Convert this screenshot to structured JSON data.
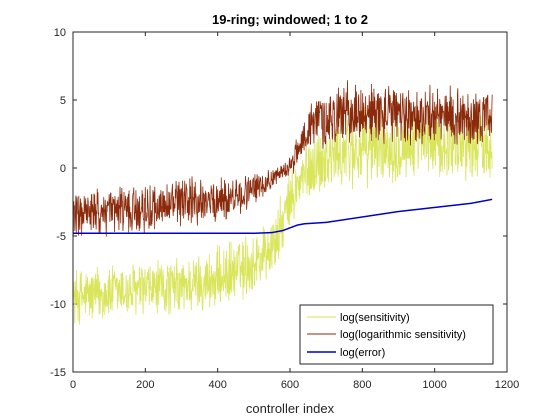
{
  "chart_data": {
    "type": "line",
    "title": "19-ring; windowed; 1 to 2",
    "xlabel": "controller index",
    "ylabel": "",
    "xlim": [
      0,
      1200
    ],
    "ylim": [
      -15,
      10
    ],
    "x_ticks": [
      0,
      200,
      400,
      600,
      800,
      1000,
      1200
    ],
    "y_ticks": [
      -15,
      -10,
      -5,
      0,
      5,
      10
    ],
    "legend_position": "bottom-right",
    "grid": false,
    "n_points": 1160,
    "series": [
      {
        "name": "log(sensitivity)",
        "color": "#d9e55a",
        "envelope": {
          "x": [
            0,
            100,
            200,
            300,
            400,
            500,
            560,
            600,
            640,
            680,
            750,
            850,
            950,
            1050,
            1160
          ],
          "center": [
            -9.5,
            -9.2,
            -9.0,
            -8.7,
            -8.2,
            -7.0,
            -5.5,
            -2.5,
            -0.5,
            0.5,
            1.2,
            1.6,
            1.8,
            1.8,
            1.8
          ],
          "spread": [
            2.0,
            2.0,
            2.0,
            2.0,
            2.2,
            2.3,
            2.2,
            2.0,
            2.2,
            2.5,
            2.6,
            2.6,
            2.5,
            2.4,
            2.4
          ]
        }
      },
      {
        "name": "log(logarithmic sensitivity)",
        "color": "#8b2a0a",
        "envelope": {
          "x": [
            0,
            100,
            200,
            300,
            400,
            470,
            520,
            570,
            610,
            640,
            680,
            750,
            850,
            950,
            1050,
            1160
          ],
          "center": [
            -3.5,
            -3.2,
            -3.0,
            -2.6,
            -2.4,
            -2.0,
            -1.2,
            -0.5,
            0.5,
            2.5,
            3.5,
            4.0,
            4.0,
            3.8,
            3.8,
            3.7
          ],
          "spread": [
            1.6,
            1.6,
            1.7,
            1.7,
            1.6,
            1.4,
            0.9,
            0.6,
            0.8,
            1.6,
            2.0,
            2.1,
            2.1,
            2.0,
            2.0,
            2.0
          ]
        }
      },
      {
        "name": "log(error)",
        "color": "#0000cc",
        "x": [
          0,
          100,
          200,
          300,
          400,
          500,
          550,
          580,
          600,
          620,
          640,
          700,
          800,
          900,
          1000,
          1100,
          1160
        ],
        "y": [
          -4.8,
          -4.8,
          -4.8,
          -4.8,
          -4.8,
          -4.8,
          -4.75,
          -4.6,
          -4.4,
          -4.2,
          -4.1,
          -4.0,
          -3.6,
          -3.2,
          -2.9,
          -2.6,
          -2.3
        ]
      }
    ]
  }
}
